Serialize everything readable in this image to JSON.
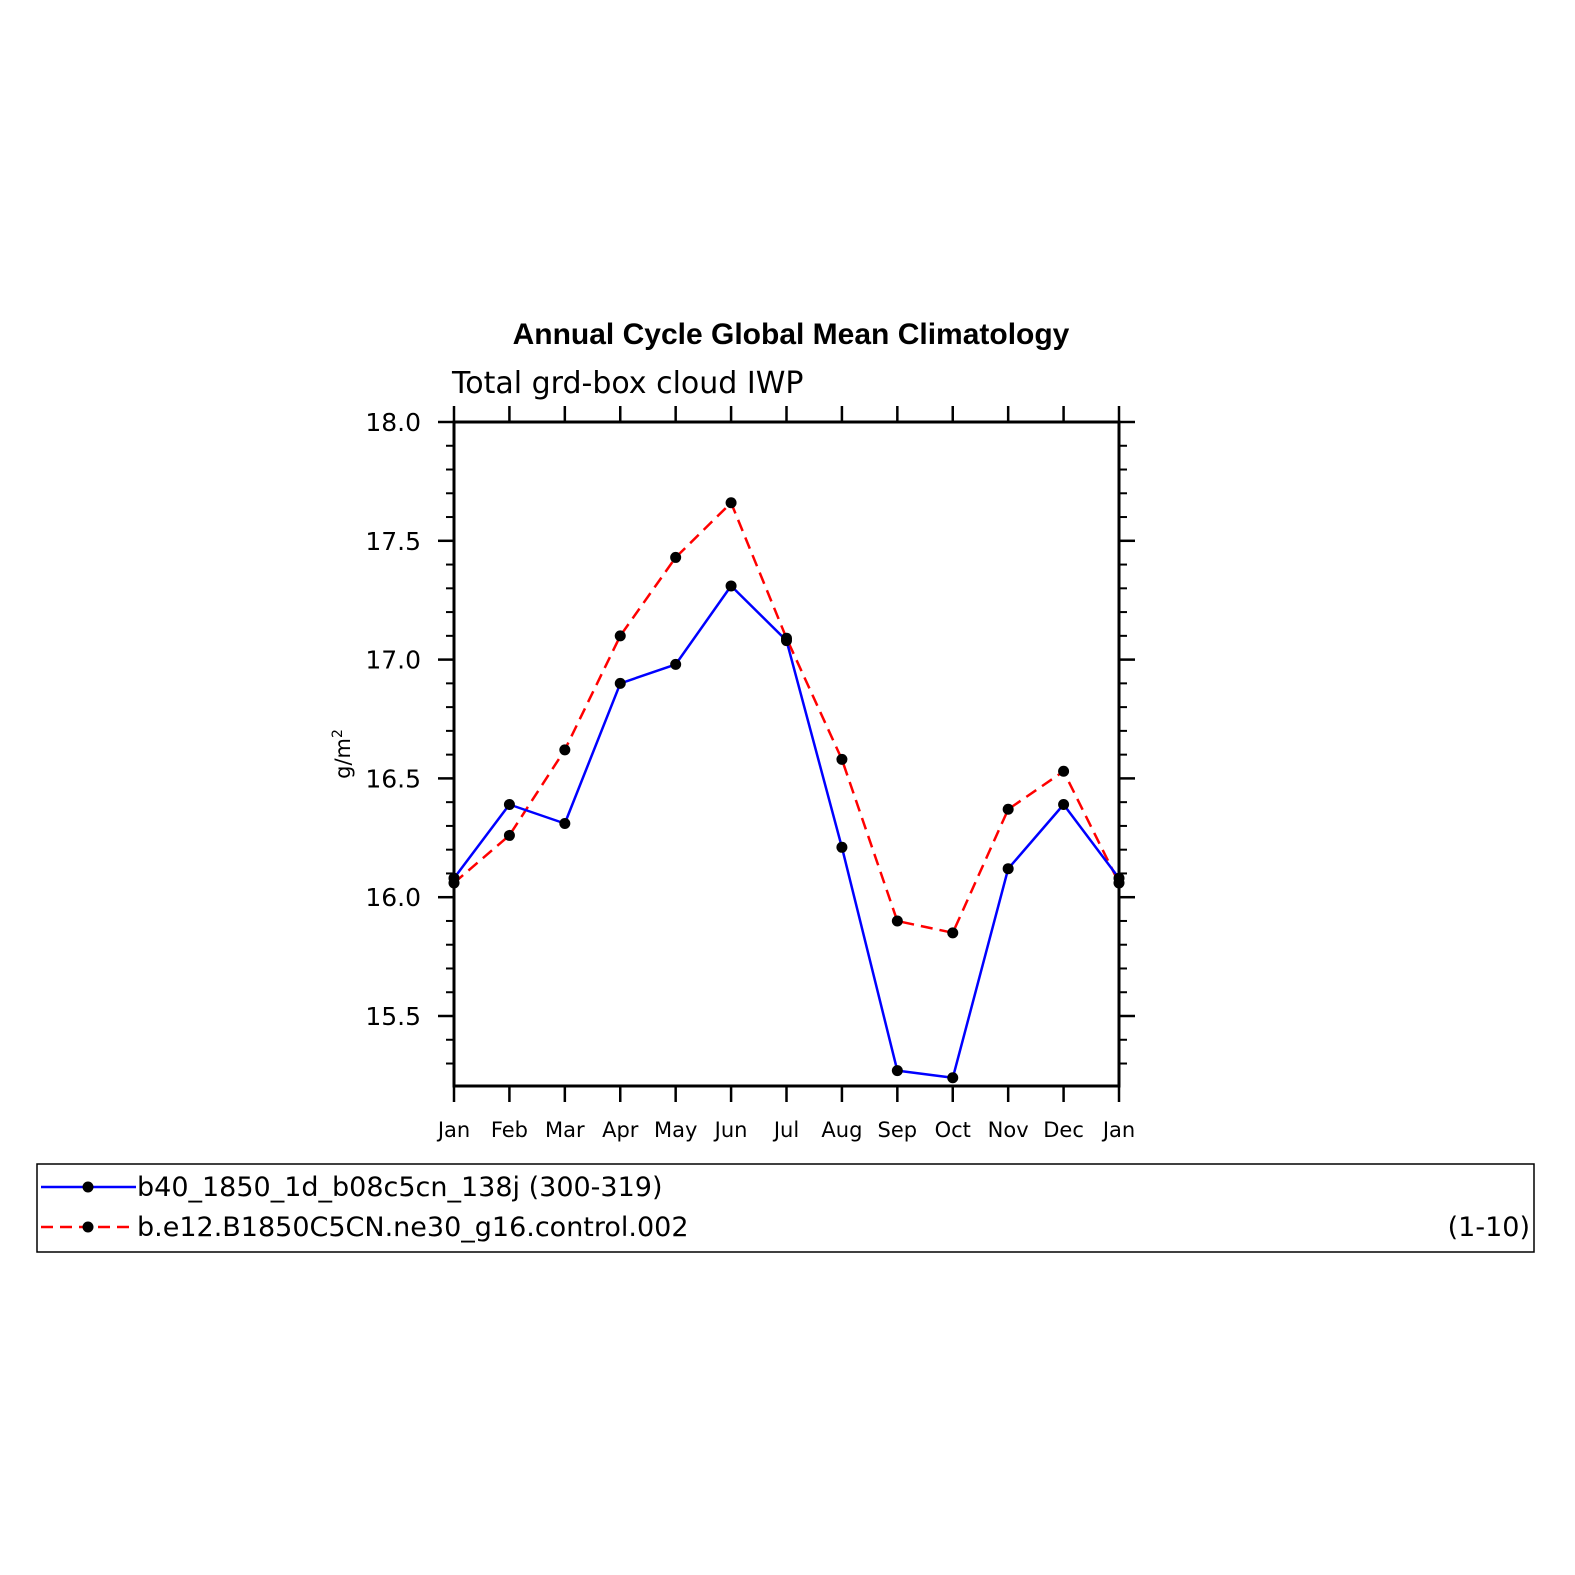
{
  "chart_data": {
    "type": "line",
    "title": "Annual Cycle Global Mean Climatology",
    "subtitle": "Total grd-box cloud IWP",
    "ylabel_base": "g/m",
    "ylabel_sup": "2",
    "categories": [
      "Jan",
      "Feb",
      "Mar",
      "Apr",
      "May",
      "Jun",
      "Jul",
      "Aug",
      "Sep",
      "Oct",
      "Nov",
      "Dec",
      "Jan"
    ],
    "y_ticks": [
      "18.0",
      "17.5",
      "17.0",
      "16.5",
      "16.0",
      "15.5"
    ],
    "ylim": [
      15.2,
      18.0
    ],
    "series": [
      {
        "name": "b40_1850_1d_b08c5cn_138j (300-319)",
        "color": "#0000ff",
        "dash": "solid",
        "values": [
          16.08,
          16.39,
          16.31,
          16.9,
          16.98,
          17.31,
          17.08,
          16.21,
          15.27,
          15.24,
          16.12,
          16.39,
          16.08
        ]
      },
      {
        "name": "b.e12.B1850C5CN.ne30_g16.control.002",
        "years": "(1-10)",
        "color": "#ff0000",
        "dash": "dashed",
        "values": [
          16.06,
          16.26,
          16.62,
          17.1,
          17.43,
          17.66,
          17.09,
          16.58,
          15.9,
          15.85,
          16.37,
          16.53,
          16.06
        ]
      }
    ],
    "marker_color": "#000000",
    "grid": false,
    "legend_position": "bottom"
  }
}
